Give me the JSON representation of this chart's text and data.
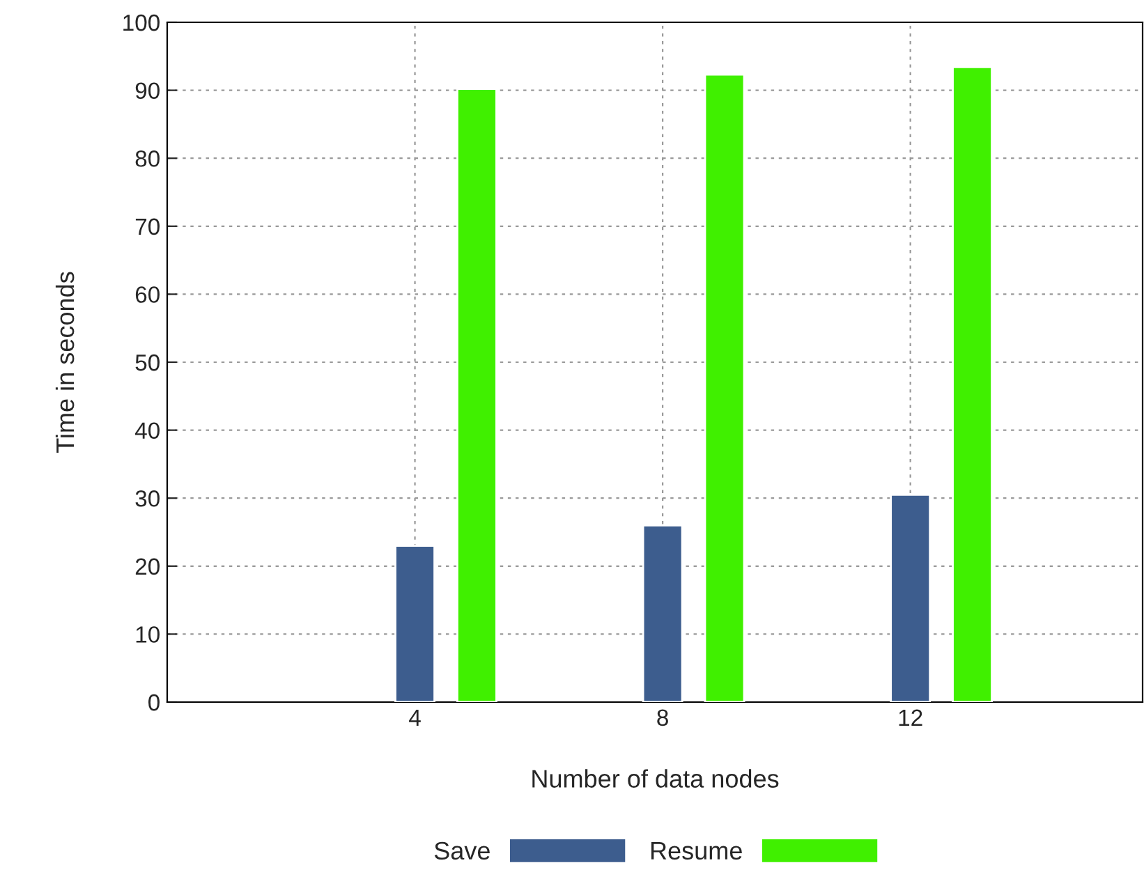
{
  "chart_data": {
    "type": "bar",
    "xlabel": "Number of data nodes",
    "ylabel": "Time in seconds",
    "x": [
      4,
      8,
      12
    ],
    "series": [
      {
        "name": "Save",
        "color": "#3d5d8e",
        "values": [
          23,
          26,
          30.5
        ]
      },
      {
        "name": "Resume",
        "color": "#40f000",
        "values": [
          90.2,
          92.3,
          93.4
        ]
      }
    ],
    "xlim": [
      0,
      15.75
    ],
    "xticks": [
      4,
      8,
      12
    ],
    "ylim": [
      0,
      100
    ],
    "yticks": [
      0,
      10,
      20,
      30,
      40,
      50,
      60,
      70,
      80,
      90,
      100
    ],
    "grid": true,
    "legend": "bottom"
  }
}
